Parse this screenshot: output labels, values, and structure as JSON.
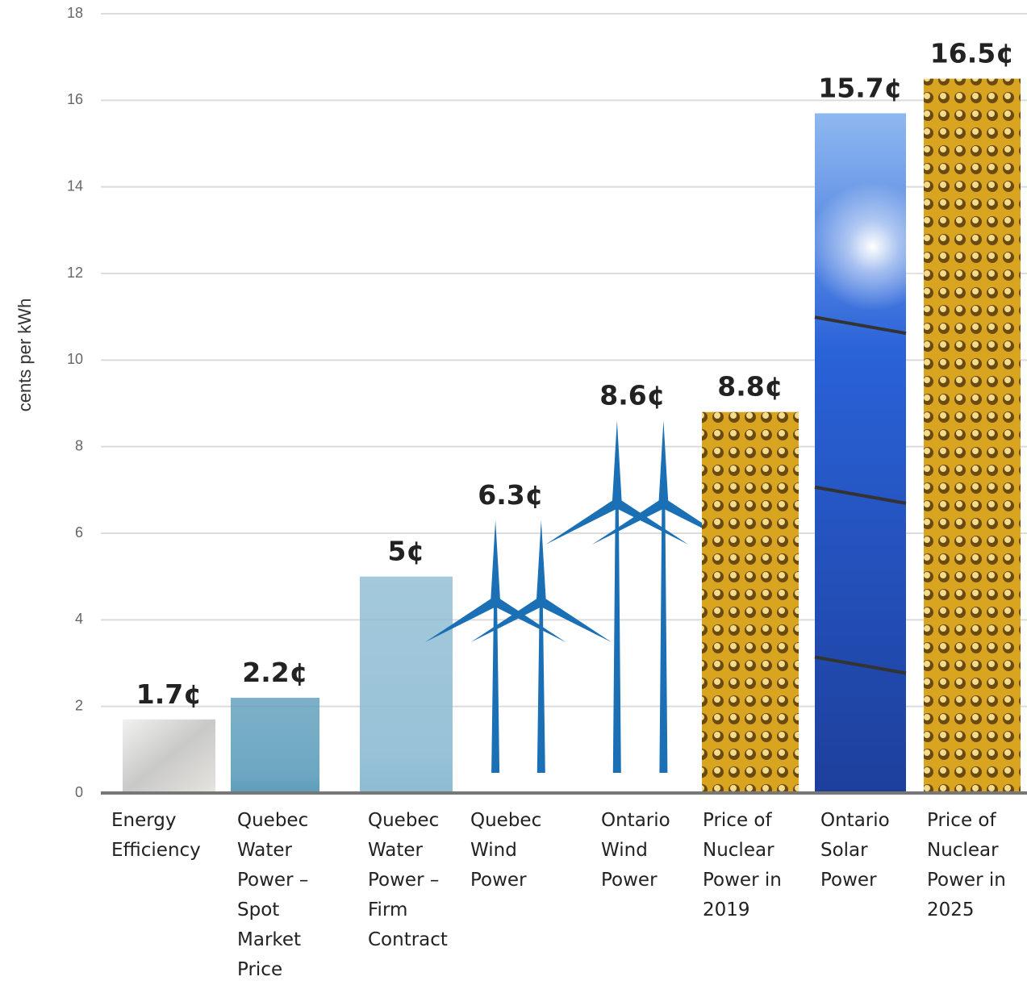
{
  "chart_data": {
    "type": "bar",
    "y_axis_label": "cents per kWh",
    "categories": [
      "Energy Efficiency",
      "Quebec Water Power – Spot Market Price",
      "Quebec Water Power – Firm Contract",
      "Quebec Wind Power",
      "Ontario Wind Power",
      "Price of Nuclear Power in 2019",
      "Ontario Solar Power",
      "Price of Nuclear Power in 2025"
    ],
    "values": [
      1.7,
      2.2,
      5,
      6.3,
      8.6,
      8.8,
      15.7,
      16.5
    ],
    "value_labels": [
      "1.7¢",
      "2.2¢",
      "5¢",
      "6.3¢",
      "8.6¢",
      "8.8¢",
      "15.7¢",
      "16.5¢"
    ],
    "colors": [
      "#c9c9c7",
      "#5d9dbb",
      "#8dbbd3",
      "#1a6fb5",
      "#1a6fb5",
      "#d9a520",
      "#2a62d8",
      "#d9a520"
    ],
    "ylim": [
      0,
      18
    ],
    "yticks": [
      0,
      2,
      4,
      6,
      8,
      10,
      12,
      14,
      16,
      18
    ],
    "grid": true
  }
}
